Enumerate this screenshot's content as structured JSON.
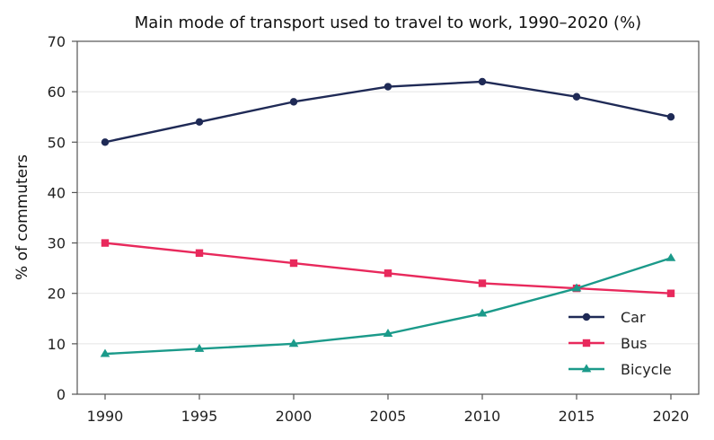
{
  "chart_data": {
    "type": "line",
    "title": "Main mode of transport used to travel to work, 1990–2020 (%)",
    "xlabel": "",
    "ylabel": "% of commuters",
    "x": [
      1990,
      1995,
      2000,
      2005,
      2010,
      2015,
      2020
    ],
    "x_tick_labels": [
      "1990",
      "1995",
      "2000",
      "2005",
      "2010",
      "2015",
      "2020"
    ],
    "ylim": [
      0,
      70
    ],
    "y_ticks": [
      0,
      10,
      20,
      30,
      40,
      50,
      60,
      70
    ],
    "y_tick_labels": [
      "0",
      "10",
      "20",
      "30",
      "40",
      "50",
      "60",
      "70"
    ],
    "grid": "horizontal",
    "legend_position": "bottom-right",
    "series": [
      {
        "name": "Car",
        "marker": "circle",
        "color": "#1f2a56",
        "values": [
          50,
          54,
          58,
          61,
          62,
          59,
          55
        ]
      },
      {
        "name": "Bus",
        "marker": "square",
        "color": "#e8295c",
        "values": [
          30,
          28,
          26,
          24,
          22,
          21,
          20
        ]
      },
      {
        "name": "Bicycle",
        "marker": "triangle",
        "color": "#1b9a8a",
        "values": [
          8,
          9,
          10,
          12,
          16,
          21,
          27
        ]
      }
    ]
  }
}
